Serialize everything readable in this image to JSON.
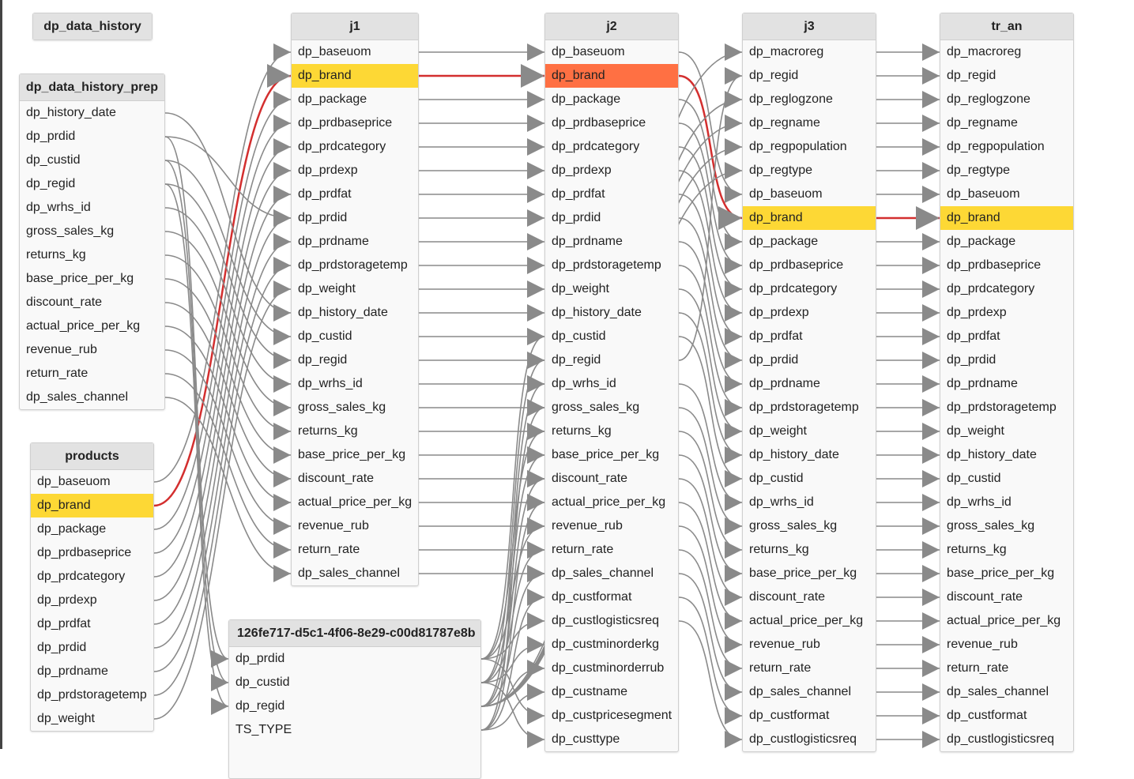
{
  "nodes": {
    "dp_data_history": {
      "title": "dp_data_history",
      "fields": []
    },
    "dp_data_history_prep": {
      "title": "dp_data_history_prep",
      "fields": [
        "dp_history_date",
        "dp_prdid",
        "dp_custid",
        "dp_regid",
        "dp_wrhs_id",
        "gross_sales_kg",
        "returns_kg",
        "base_price_per_kg",
        "discount_rate",
        "actual_price_per_kg",
        "revenue_rub",
        "return_rate",
        "dp_sales_channel"
      ]
    },
    "products": {
      "title": "products",
      "fields": [
        "dp_baseuom",
        "dp_brand",
        "dp_package",
        "dp_prdbaseprice",
        "dp_prdcategory",
        "dp_prdexp",
        "dp_prdfat",
        "dp_prdid",
        "dp_prdname",
        "dp_prdstoragetemp",
        "dp_weight"
      ]
    },
    "j1": {
      "title": "j1",
      "fields": [
        "dp_baseuom",
        "dp_brand",
        "dp_package",
        "dp_prdbaseprice",
        "dp_prdcategory",
        "dp_prdexp",
        "dp_prdfat",
        "dp_prdid",
        "dp_prdname",
        "dp_prdstoragetemp",
        "dp_weight",
        "dp_history_date",
        "dp_custid",
        "dp_regid",
        "dp_wrhs_id",
        "gross_sales_kg",
        "returns_kg",
        "base_price_per_kg",
        "discount_rate",
        "actual_price_per_kg",
        "revenue_rub",
        "return_rate",
        "dp_sales_channel"
      ]
    },
    "uuid": {
      "title": "126fe717-d5c1-4f06-8e29-c00d81787e8b",
      "fields": [
        "dp_prdid",
        "dp_custid",
        "dp_regid",
        "TS_TYPE"
      ]
    },
    "j2": {
      "title": "j2",
      "fields": [
        "dp_baseuom",
        "dp_brand",
        "dp_package",
        "dp_prdbaseprice",
        "dp_prdcategory",
        "dp_prdexp",
        "dp_prdfat",
        "dp_prdid",
        "dp_prdname",
        "dp_prdstoragetemp",
        "dp_weight",
        "dp_history_date",
        "dp_custid",
        "dp_regid",
        "dp_wrhs_id",
        "gross_sales_kg",
        "returns_kg",
        "base_price_per_kg",
        "discount_rate",
        "actual_price_per_kg",
        "revenue_rub",
        "return_rate",
        "dp_sales_channel",
        "dp_custformat",
        "dp_custlogisticsreq",
        "dp_custminorderkg",
        "dp_custminorderrub",
        "dp_custname",
        "dp_custpricesegment",
        "dp_custtype"
      ]
    },
    "j3": {
      "title": "j3",
      "fields": [
        "dp_macroreg",
        "dp_regid",
        "dp_reglogzone",
        "dp_regname",
        "dp_regpopulation",
        "dp_regtype",
        "dp_baseuom",
        "dp_brand",
        "dp_package",
        "dp_prdbaseprice",
        "dp_prdcategory",
        "dp_prdexp",
        "dp_prdfat",
        "dp_prdid",
        "dp_prdname",
        "dp_prdstoragetemp",
        "dp_weight",
        "dp_history_date",
        "dp_custid",
        "dp_wrhs_id",
        "gross_sales_kg",
        "returns_kg",
        "base_price_per_kg",
        "discount_rate",
        "actual_price_per_kg",
        "revenue_rub",
        "return_rate",
        "dp_sales_channel",
        "dp_custformat",
        "dp_custlogisticsreq"
      ]
    },
    "tr_an": {
      "title": "tr_an",
      "fields": [
        "dp_macroreg",
        "dp_regid",
        "dp_reglogzone",
        "dp_regname",
        "dp_regpopulation",
        "dp_regtype",
        "dp_baseuom",
        "dp_brand",
        "dp_package",
        "dp_prdbaseprice",
        "dp_prdcategory",
        "dp_prdexp",
        "dp_prdfat",
        "dp_prdid",
        "dp_prdname",
        "dp_prdstoragetemp",
        "dp_weight",
        "dp_history_date",
        "dp_custid",
        "dp_wrhs_id",
        "gross_sales_kg",
        "returns_kg",
        "base_price_per_kg",
        "discount_rate",
        "actual_price_per_kg",
        "revenue_rub",
        "return_rate",
        "dp_sales_channel",
        "dp_custformat",
        "dp_custlogisticsreq"
      ]
    }
  },
  "highlight": {
    "field": "dp_brand",
    "selected_node": "j2",
    "selected_color": "#ff7043",
    "lineage_color": "#fdd835",
    "lineage_edge_color": "#d32f2f",
    "edge_color": "#8a8a8a"
  }
}
